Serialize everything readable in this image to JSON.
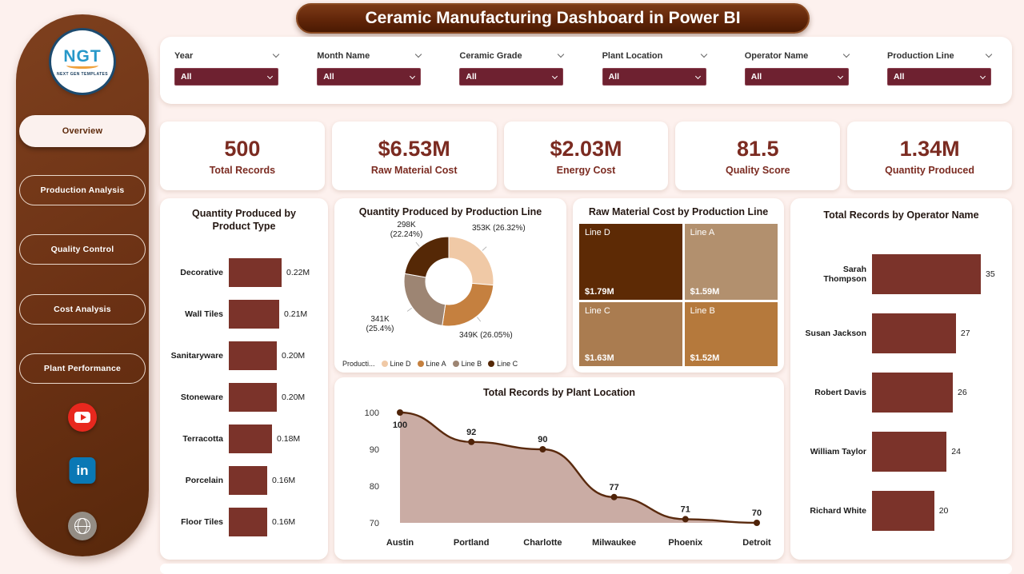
{
  "title": "Ceramic Manufacturing Dashboard in Power BI",
  "logo": {
    "text": "NGT",
    "subtext": "NEXT GEN TEMPLATES"
  },
  "sidebar": {
    "items": [
      {
        "label": "Overview",
        "active": true
      },
      {
        "label": "Production Analysis",
        "active": false
      },
      {
        "label": "Quality Control",
        "active": false
      },
      {
        "label": "Cost Analysis",
        "active": false
      },
      {
        "label": "Plant Performance",
        "active": false
      }
    ],
    "social": [
      {
        "name": "youtube"
      },
      {
        "name": "linkedin"
      },
      {
        "name": "www"
      }
    ]
  },
  "filters": [
    {
      "label": "Year",
      "value": "All"
    },
    {
      "label": "Month Name",
      "value": "All"
    },
    {
      "label": "Ceramic Grade",
      "value": "All"
    },
    {
      "label": "Plant Location",
      "value": "All"
    },
    {
      "label": "Operator Name",
      "value": "All"
    },
    {
      "label": "Production Line",
      "value": "All"
    }
  ],
  "kpis": [
    {
      "value": "500",
      "label": "Total Records"
    },
    {
      "value": "$6.53M",
      "label": "Raw Material Cost"
    },
    {
      "value": "$2.03M",
      "label": "Energy Cost"
    },
    {
      "value": "81.5",
      "label": "Quality Score"
    },
    {
      "value": "1.34M",
      "label": "Quantity Produced"
    }
  ],
  "colors": {
    "page_bg": "#fdf1ee",
    "sidebar_brown": "#6b3114",
    "banner_brown": "#5f2408",
    "slicer_maroon": "#6e2130",
    "kpi_text": "#7b2b21",
    "bar_color": "#7b332a",
    "line_color": "#5a2a0e",
    "area_fill": "#c7a89f",
    "marker_color": "#4f2309"
  },
  "chart_data": [
    {
      "id": "product_bars",
      "type": "bar",
      "orientation": "horizontal",
      "title": "Quantity Produced by\nProduct Type",
      "categories": [
        "Decorative",
        "Wall Tiles",
        "Sanitaryware",
        "Stoneware",
        "Terracotta",
        "Porcelain",
        "Floor Tiles"
      ],
      "values": [
        0.22,
        0.21,
        0.2,
        0.2,
        0.18,
        0.16,
        0.16
      ],
      "labels": [
        "0.22M",
        "0.21M",
        "0.20M",
        "0.20M",
        "0.18M",
        "0.16M",
        "0.16M"
      ],
      "xlabel": "",
      "ylabel": ""
    },
    {
      "id": "production_donut",
      "type": "pie",
      "title": "Quantity Produced by Production Line",
      "legend_title": "Producti...",
      "slices": [
        {
          "name": "Line D",
          "value": 353,
          "label": "353K (26.32%)",
          "color": "#f0c9a6"
        },
        {
          "name": "Line A",
          "value": 349,
          "label": "349K (26.05%)",
          "color": "#c5803f"
        },
        {
          "name": "Line B",
          "value": 341,
          "label": "341K\n(25.4%)",
          "color": "#9d8573"
        },
        {
          "name": "Line C",
          "value": 298,
          "label": "298K\n(22.24%)",
          "color": "#552806"
        }
      ]
    },
    {
      "id": "cost_treemap",
      "type": "treemap",
      "title": "Raw Material Cost by Production Line",
      "items": [
        {
          "name": "Line D",
          "value": "$1.79M",
          "color": "#5d2a05"
        },
        {
          "name": "Line A",
          "value": "$1.59M",
          "color": "#b2906e"
        },
        {
          "name": "Line C",
          "value": "$1.63M",
          "color": "#aa7c50"
        },
        {
          "name": "Line B",
          "value": "$1.52M",
          "color": "#b5793c"
        }
      ]
    },
    {
      "id": "operator_bars",
      "type": "bar",
      "orientation": "horizontal",
      "title": "Total Records by Operator Name",
      "categories": [
        "Sarah Thompson",
        "Susan Jackson",
        "Robert Davis",
        "William Taylor",
        "Richard White"
      ],
      "values": [
        35,
        27,
        26,
        24,
        20
      ],
      "labels": [
        "35",
        "27",
        "26",
        "24",
        "20"
      ],
      "xlabel": "",
      "ylabel": ""
    },
    {
      "id": "location_area",
      "type": "area",
      "title": "Total Records by Plant Location",
      "x": [
        "Austin",
        "Portland",
        "Charlotte",
        "Milwaukee",
        "Phoenix",
        "Detroit"
      ],
      "values": [
        100,
        92,
        90,
        77,
        71,
        70
      ],
      "labels": [
        "100",
        "92",
        "90",
        "77",
        "71",
        "70"
      ],
      "ylim": [
        70,
        100
      ],
      "yticks": [
        100,
        90,
        80,
        70
      ],
      "grid": false,
      "legend": "none"
    }
  ]
}
